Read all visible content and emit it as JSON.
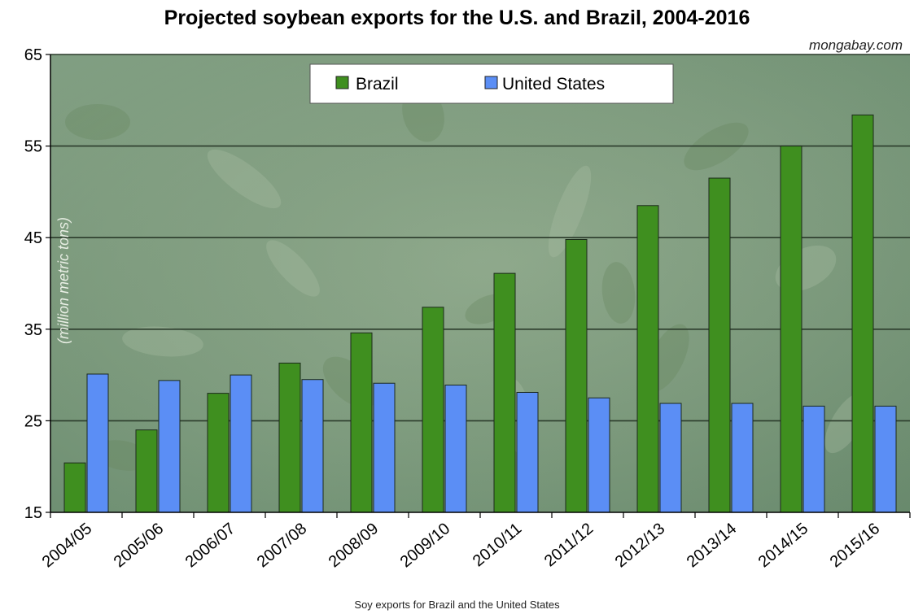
{
  "chart_data": {
    "type": "bar",
    "title": "Projected soybean exports for the U.S. and Brazil, 2004-2016",
    "watermark": "mongabay.com",
    "source": "Soy exports for Brazil and the United States",
    "ylabel": "(million metric tons)",
    "xlabel": "",
    "ylim": [
      15,
      65
    ],
    "yticks": [
      15,
      25,
      35,
      45,
      55,
      65
    ],
    "grid": true,
    "legend_position": "top-center",
    "categories": [
      "2004/05",
      "2005/06",
      "2006/07",
      "2007/08",
      "2008/09",
      "2009/10",
      "2010/11",
      "2011/12",
      "2012/13",
      "2013/14",
      "2014/15",
      "2015/16"
    ],
    "series": [
      {
        "name": "Brazil",
        "color": "#3f8f1f",
        "values": [
          20.4,
          24.0,
          28.0,
          31.3,
          34.6,
          37.4,
          41.1,
          44.8,
          48.5,
          51.5,
          55.0,
          58.4
        ]
      },
      {
        "name": "United States",
        "color": "#5b8ef5",
        "values": [
          30.1,
          29.4,
          30.0,
          29.5,
          29.1,
          28.9,
          28.1,
          27.5,
          26.9,
          26.9,
          26.6,
          26.6
        ]
      }
    ]
  }
}
